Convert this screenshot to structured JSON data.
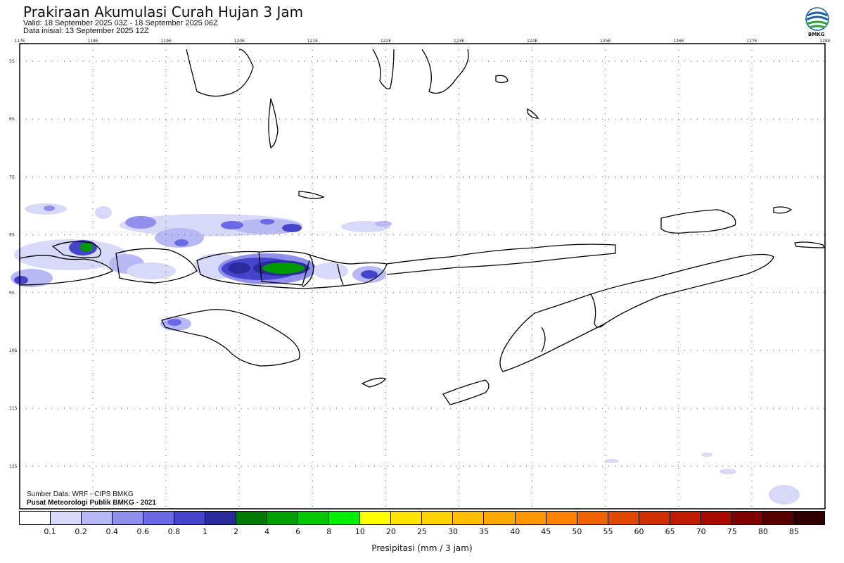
{
  "header": {
    "title": "Prakiraan Akumulasi Curah Hujan 3 Jam",
    "valid": "Valid: 18 September 2025 03Z - 18 September 2025 06Z",
    "initial": "Data inisial: 13 September 2025 12Z"
  },
  "logo": {
    "text": "BMKG",
    "icon": "bmkg-logo-icon"
  },
  "credits": {
    "source": "Sumber Data: WRF - CIPS BMKG",
    "org": "Pusat Meteorologi Publik BMKG - 2021"
  },
  "axes": {
    "x_ticks": [
      "117E",
      "118E",
      "119E",
      "120E",
      "121E",
      "122E",
      "123E",
      "124E",
      "125E",
      "126E",
      "127E",
      "128E"
    ],
    "y_ticks": [
      "5S",
      "6S",
      "7S",
      "8S",
      "9S",
      "10S",
      "11S",
      "12S"
    ]
  },
  "colorbar": {
    "title": "Presipitasi (mm / 3 jam)",
    "labels": [
      "0.1",
      "0.2",
      "0.4",
      "0.6",
      "0.8",
      "1",
      "2",
      "4",
      "6",
      "8",
      "10",
      "20",
      "25",
      "30",
      "35",
      "40",
      "45",
      "50",
      "55",
      "60",
      "65",
      "70",
      "75",
      "80",
      "85"
    ],
    "colors": [
      "#ffffff",
      "#d8d8f8",
      "#b8b8f4",
      "#9090ec",
      "#6a6ae6",
      "#4444cc",
      "#2b2b9e",
      "#007a00",
      "#00a000",
      "#00c800",
      "#00f000",
      "#ffff00",
      "#ffe600",
      "#ffd200",
      "#ffbe00",
      "#ffaa00",
      "#ff9600",
      "#ff8200",
      "#f06400",
      "#e04800",
      "#d03000",
      "#c01c00",
      "#a80a00",
      "#800000",
      "#580000",
      "#300000"
    ]
  }
}
